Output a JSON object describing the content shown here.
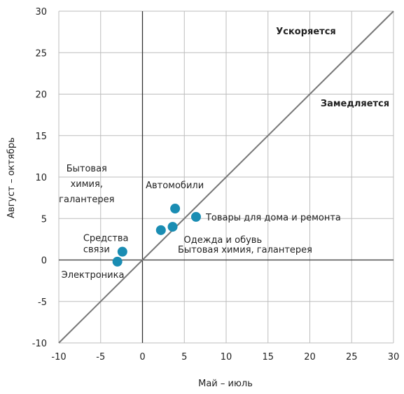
{
  "chart_data": {
    "type": "scatter",
    "title": "",
    "xlabel": "Май – июль",
    "ylabel": "Август – октябрь",
    "xlim": [
      -10,
      30
    ],
    "ylim": [
      -10,
      30
    ],
    "xticks": [
      -10,
      -5,
      0,
      5,
      10,
      15,
      20,
      25,
      30
    ],
    "yticks": [
      -10,
      -5,
      0,
      5,
      10,
      15,
      20,
      25,
      30
    ],
    "grid": true,
    "reference_line": "y = x",
    "point_color": "#1a8db3",
    "points": [
      {
        "label": "Автомобили",
        "x": 3.9,
        "y": 6.2
      },
      {
        "label": "Товары для дома и ремонта",
        "x": 6.4,
        "y": 5.2
      },
      {
        "label": "Одежда и обувь",
        "x": 3.6,
        "y": 4.0
      },
      {
        "label": "Бытовая химия, галантерея",
        "x": 2.2,
        "y": 3.6
      },
      {
        "label": "Средства связи",
        "x": -2.4,
        "y": 1.0
      },
      {
        "label": "Электроника",
        "x": -3.0,
        "y": -0.2
      }
    ],
    "annotations": [
      {
        "text": "Ускоряется"
      },
      {
        "text": "Замедляется"
      },
      {
        "text": "Бытовая химия, галантерея"
      }
    ]
  }
}
